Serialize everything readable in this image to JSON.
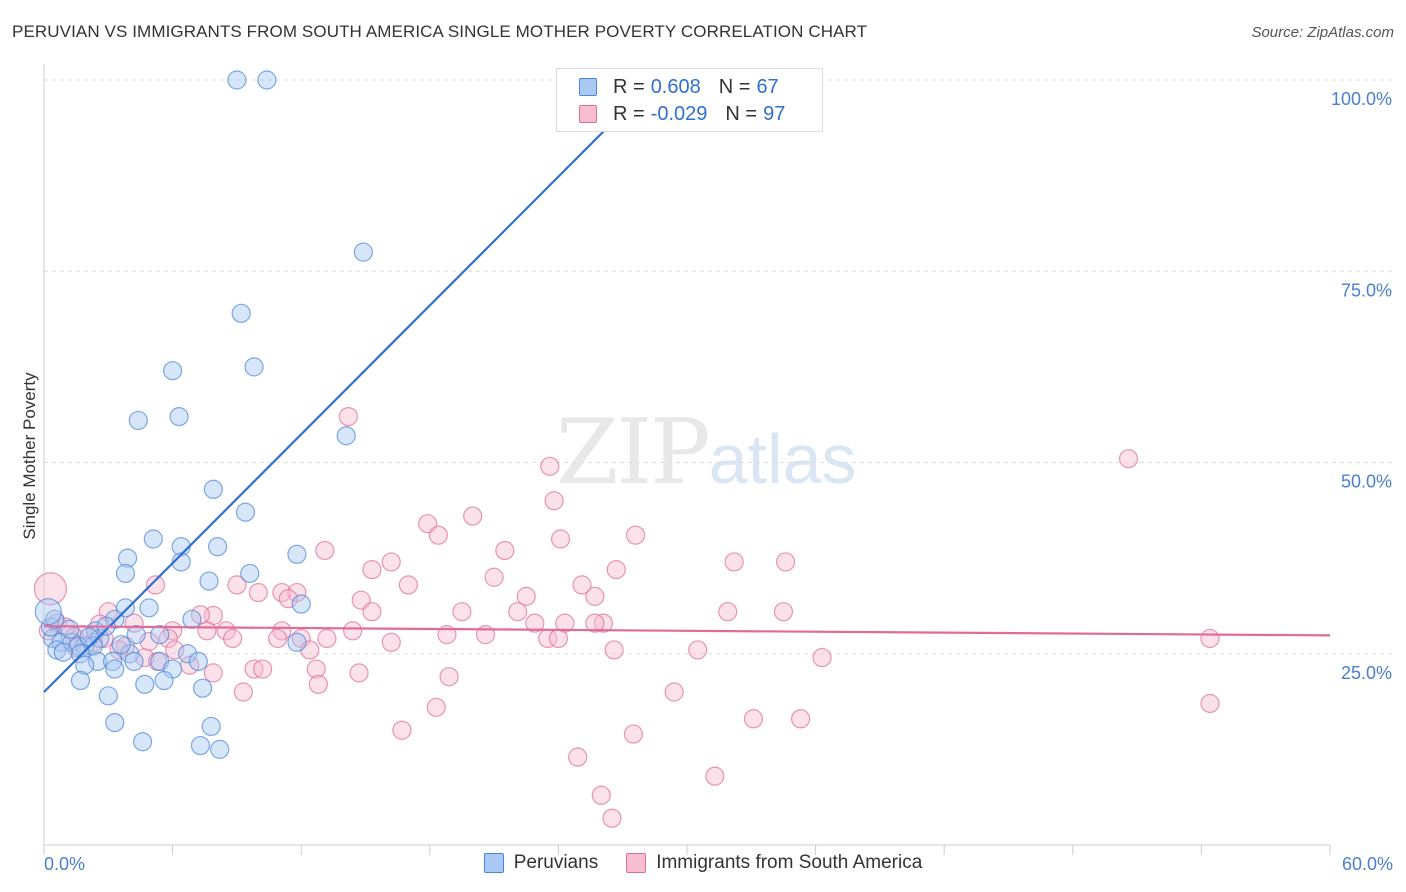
{
  "title": "PERUVIAN VS IMMIGRANTS FROM SOUTH AMERICA SINGLE MOTHER POVERTY CORRELATION CHART",
  "source": "Source: ZipAtlas.com",
  "watermark": {
    "zip": "ZIP",
    "atlas": "atlas"
  },
  "legend": {
    "rows": [
      {
        "r_label": "R =",
        "r_value": "0.608",
        "n_label": "N =",
        "n_value": "67",
        "color": "#8ab4f0"
      },
      {
        "r_label": "R =",
        "r_value": "-0.029",
        "n_label": "N =",
        "n_value": "97",
        "color": "#f4a6c0"
      }
    ]
  },
  "chart_data": {
    "type": "scatter",
    "ylabel": "Single Mother Poverty",
    "xlabel": "",
    "x_tick_labels": [
      "0.0%",
      "60.0%"
    ],
    "y_tick_labels": [
      "100.0%",
      "75.0%",
      "50.0%",
      "25.0%"
    ],
    "xlim": [
      0,
      60
    ],
    "ylim": [
      0,
      102
    ],
    "y_ticks": [
      100,
      75,
      50,
      25
    ],
    "series": [
      {
        "name": "Peruvians",
        "color": "#4a86d8",
        "fill": "#a9c8f2",
        "trend": {
          "x": [
            0,
            28.5
          ],
          "y": [
            20.0,
            100.0
          ]
        },
        "points": [
          [
            9.0,
            100
          ],
          [
            10.4,
            100
          ],
          [
            28.6,
            100
          ],
          [
            14.9,
            77.5
          ],
          [
            9.2,
            69.5
          ],
          [
            9.8,
            62.5
          ],
          [
            6.0,
            62
          ],
          [
            6.3,
            56
          ],
          [
            4.4,
            55.5
          ],
          [
            14.1,
            53.5
          ],
          [
            7.9,
            46.5
          ],
          [
            9.4,
            43.5
          ],
          [
            5.1,
            40
          ],
          [
            6.4,
            39
          ],
          [
            8.1,
            39
          ],
          [
            3.9,
            37.5
          ],
          [
            6.4,
            37
          ],
          [
            11.8,
            38
          ],
          [
            3.8,
            35.5
          ],
          [
            9.6,
            35.5
          ],
          [
            7.7,
            34.5
          ],
          [
            3.8,
            31
          ],
          [
            4.9,
            31
          ],
          [
            12.0,
            31.5
          ],
          [
            3.3,
            29.5
          ],
          [
            6.9,
            29.5
          ],
          [
            2.4,
            28
          ],
          [
            4.3,
            27.5
          ],
          [
            5.4,
            27.5
          ],
          [
            0.4,
            27
          ],
          [
            2.6,
            27
          ],
          [
            0.8,
            26.5
          ],
          [
            1.3,
            26.5
          ],
          [
            1.9,
            26
          ],
          [
            1.6,
            26
          ],
          [
            2.3,
            26
          ],
          [
            0.6,
            25.5
          ],
          [
            1.7,
            25
          ],
          [
            4.0,
            25
          ],
          [
            6.7,
            25
          ],
          [
            5.4,
            24
          ],
          [
            2.5,
            24
          ],
          [
            7.2,
            24
          ],
          [
            4.2,
            24
          ],
          [
            3.2,
            24
          ],
          [
            1.9,
            23.5
          ],
          [
            11.8,
            26.5
          ],
          [
            6.0,
            23
          ],
          [
            3.3,
            23
          ],
          [
            1.7,
            21.5
          ],
          [
            5.6,
            21.5
          ],
          [
            4.7,
            21
          ],
          [
            7.4,
            20.5
          ],
          [
            3.0,
            19.5
          ],
          [
            3.3,
            16
          ],
          [
            7.8,
            15.5
          ],
          [
            4.6,
            13.5
          ],
          [
            7.3,
            13
          ],
          [
            8.2,
            12.5
          ],
          [
            0.3,
            28.5
          ],
          [
            0.5,
            29.5
          ],
          [
            1.2,
            28.2
          ],
          [
            2.1,
            27.2
          ],
          [
            0.9,
            25.2
          ],
          [
            3.6,
            26.2
          ],
          [
            0.2,
            30.5
          ],
          [
            2.9,
            28.6
          ]
        ]
      },
      {
        "name": "Immigrants from South America",
        "color": "#e06b98",
        "fill": "#f7bdd1",
        "trend": {
          "x": [
            0,
            60
          ],
          "y": [
            28.6,
            27.4
          ]
        },
        "points": [
          [
            14.2,
            56
          ],
          [
            23.6,
            49.5
          ],
          [
            50.6,
            50.5
          ],
          [
            23.8,
            45
          ],
          [
            17.9,
            42
          ],
          [
            18.4,
            40.5
          ],
          [
            20.0,
            43
          ],
          [
            24.1,
            40
          ],
          [
            27.6,
            40.5
          ],
          [
            21.5,
            38.5
          ],
          [
            16.2,
            37
          ],
          [
            15.3,
            36
          ],
          [
            26.7,
            36
          ],
          [
            32.2,
            37
          ],
          [
            13.1,
            38.5
          ],
          [
            21.0,
            35
          ],
          [
            17.0,
            34
          ],
          [
            22.5,
            32.5
          ],
          [
            25.7,
            32.5
          ],
          [
            25.1,
            34
          ],
          [
            9.0,
            34
          ],
          [
            5.2,
            34
          ],
          [
            10.0,
            33
          ],
          [
            11.1,
            33
          ],
          [
            11.8,
            33
          ],
          [
            14.8,
            32
          ],
          [
            15.3,
            30.5
          ],
          [
            19.5,
            30.5
          ],
          [
            22.1,
            30.5
          ],
          [
            26.1,
            29
          ],
          [
            24.3,
            29
          ],
          [
            22.9,
            29
          ],
          [
            25.7,
            29
          ],
          [
            31.9,
            30.5
          ],
          [
            7.9,
            30
          ],
          [
            3.0,
            30.5
          ],
          [
            4.2,
            29
          ],
          [
            6.0,
            28
          ],
          [
            7.6,
            28
          ],
          [
            8.5,
            28
          ],
          [
            11.1,
            28
          ],
          [
            14.4,
            28
          ],
          [
            18.8,
            27.5
          ],
          [
            20.6,
            27.5
          ],
          [
            23.5,
            27
          ],
          [
            24.0,
            27
          ],
          [
            10.9,
            27
          ],
          [
            12.0,
            27
          ],
          [
            13.2,
            27
          ],
          [
            8.8,
            27
          ],
          [
            1.8,
            27.5
          ],
          [
            2.8,
            27
          ],
          [
            5.8,
            27
          ],
          [
            3.8,
            26
          ],
          [
            6.1,
            25.5
          ],
          [
            12.4,
            25.5
          ],
          [
            16.2,
            26.5
          ],
          [
            26.6,
            25.5
          ],
          [
            0.2,
            28
          ],
          [
            0.6,
            29
          ],
          [
            1.0,
            28.5
          ],
          [
            1.4,
            27.2
          ],
          [
            2.3,
            26.5
          ],
          [
            3.5,
            25.5
          ],
          [
            4.7,
            24.5
          ],
          [
            5.3,
            24
          ],
          [
            6.8,
            23.5
          ],
          [
            9.8,
            23
          ],
          [
            10.2,
            23
          ],
          [
            12.7,
            23
          ],
          [
            14.7,
            22.5
          ],
          [
            18.9,
            22
          ],
          [
            36.3,
            24.5
          ],
          [
            30.5,
            25.5
          ],
          [
            7.9,
            22.5
          ],
          [
            12.8,
            21
          ],
          [
            9.3,
            20
          ],
          [
            29.4,
            20
          ],
          [
            18.3,
            18
          ],
          [
            35.3,
            16.5
          ],
          [
            33.1,
            16.5
          ],
          [
            54.4,
            18.5
          ],
          [
            16.7,
            15
          ],
          [
            27.5,
            14.5
          ],
          [
            24.9,
            11.5
          ],
          [
            31.3,
            9
          ],
          [
            26.0,
            6.5
          ],
          [
            26.5,
            3.5
          ],
          [
            54.4,
            27
          ],
          [
            34.5,
            30.5
          ],
          [
            0.3,
            33.5
          ],
          [
            1.5,
            25.8
          ],
          [
            7.3,
            30.1
          ],
          [
            4.9,
            26.6
          ],
          [
            11.4,
            32.2
          ],
          [
            2.6,
            28.9
          ],
          [
            34.6,
            37
          ]
        ]
      }
    ]
  }
}
